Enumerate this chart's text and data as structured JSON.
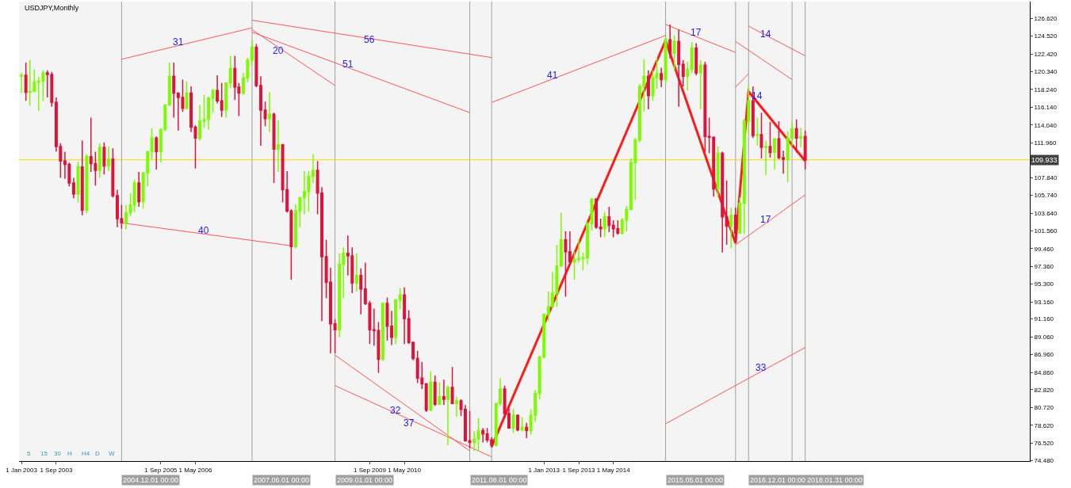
{
  "chart_data": {
    "type": "candlestick",
    "title": "USDJPY,Monthly",
    "x": [
      "2003-01",
      "2003-02",
      "2003-03",
      "2003-04",
      "2003-05",
      "2003-06",
      "2003-07",
      "2003-08",
      "2003-09",
      "2003-10",
      "2003-11",
      "2003-12",
      "2004-01",
      "2004-02",
      "2004-03",
      "2004-04",
      "2004-05",
      "2004-06",
      "2004-07",
      "2004-08",
      "2004-09",
      "2004-10",
      "2004-11",
      "2004-12",
      "2005-01",
      "2005-02",
      "2005-03",
      "2005-04",
      "2005-05",
      "2005-06",
      "2005-07",
      "2005-08",
      "2005-09",
      "2005-10",
      "2005-11",
      "2005-12",
      "2006-01",
      "2006-02",
      "2006-03",
      "2006-04",
      "2006-05",
      "2006-06",
      "2006-07",
      "2006-08",
      "2006-09",
      "2006-10",
      "2006-11",
      "2006-12",
      "2007-01",
      "2007-02",
      "2007-03",
      "2007-04",
      "2007-05",
      "2007-06",
      "2007-07",
      "2007-08",
      "2007-09",
      "2007-10",
      "2007-11",
      "2007-12",
      "2008-01",
      "2008-02",
      "2008-03",
      "2008-04",
      "2008-05",
      "2008-06",
      "2008-07",
      "2008-08",
      "2008-09",
      "2008-10",
      "2008-11",
      "2008-12",
      "2009-01",
      "2009-02",
      "2009-03",
      "2009-04",
      "2009-05",
      "2009-06",
      "2009-07",
      "2009-08",
      "2009-09",
      "2009-10",
      "2009-11",
      "2009-12",
      "2010-01",
      "2010-02",
      "2010-03",
      "2010-04",
      "2010-05",
      "2010-06",
      "2010-07",
      "2010-08",
      "2010-09",
      "2010-10",
      "2010-11",
      "2010-12",
      "2011-01",
      "2011-02",
      "2011-03",
      "2011-04",
      "2011-05",
      "2011-06",
      "2011-07",
      "2011-08",
      "2011-09",
      "2011-10",
      "2011-11",
      "2011-12",
      "2012-01",
      "2012-02",
      "2012-03",
      "2012-04",
      "2012-05",
      "2012-06",
      "2012-07",
      "2012-08",
      "2012-09",
      "2012-10",
      "2012-11",
      "2012-12",
      "2013-01",
      "2013-02",
      "2013-03",
      "2013-04",
      "2013-05",
      "2013-06",
      "2013-07",
      "2013-08",
      "2013-09",
      "2013-10",
      "2013-11",
      "2013-12",
      "2014-01",
      "2014-02",
      "2014-03",
      "2014-04",
      "2014-05",
      "2014-06",
      "2014-07",
      "2014-08",
      "2014-09",
      "2014-10",
      "2014-11",
      "2014-12",
      "2015-01",
      "2015-02",
      "2015-03",
      "2015-04",
      "2015-05",
      "2015-06",
      "2015-07",
      "2015-08",
      "2015-09",
      "2015-10",
      "2015-11",
      "2015-12",
      "2016-01",
      "2016-02",
      "2016-03",
      "2016-04",
      "2016-05",
      "2016-06",
      "2016-07",
      "2016-08",
      "2016-09",
      "2016-10",
      "2016-11",
      "2016-12",
      "2017-01",
      "2017-02",
      "2017-03",
      "2017-04",
      "2017-05",
      "2017-06",
      "2017-07",
      "2017-08",
      "2017-09",
      "2017-10",
      "2017-11",
      "2017-12",
      "2018-01"
    ],
    "ohlc": [
      [
        119.8,
        120.2,
        117.8,
        119.9
      ],
      [
        119.9,
        121.4,
        116.9,
        117.9
      ],
      [
        117.9,
        121.7,
        116.3,
        118.0
      ],
      [
        118.0,
        120.6,
        118.0,
        119.1
      ],
      [
        119.1,
        119.7,
        115.7,
        119.2
      ],
      [
        119.2,
        120.5,
        116.9,
        120.2
      ],
      [
        120.2,
        120.5,
        117.3,
        120.0
      ],
      [
        120.0,
        120.3,
        116.2,
        116.7
      ],
      [
        116.7,
        117.3,
        110.9,
        111.5
      ],
      [
        111.5,
        111.9,
        107.8,
        109.8
      ],
      [
        109.8,
        110.9,
        107.7,
        109.4
      ],
      [
        109.4,
        109.6,
        106.8,
        107.2
      ],
      [
        107.2,
        107.8,
        105.4,
        105.9
      ],
      [
        105.9,
        109.7,
        104.9,
        109.1
      ],
      [
        109.1,
        112.2,
        103.4,
        104.0
      ],
      [
        104.0,
        110.6,
        103.6,
        110.3
      ],
      [
        110.3,
        114.9,
        108.5,
        109.5
      ],
      [
        109.5,
        110.9,
        106.9,
        108.7
      ],
      [
        108.7,
        111.9,
        107.8,
        111.4
      ],
      [
        111.4,
        112.0,
        108.2,
        109.2
      ],
      [
        109.2,
        111.5,
        108.6,
        110.0
      ],
      [
        110.0,
        111.3,
        105.5,
        105.7
      ],
      [
        105.7,
        106.4,
        102.0,
        103.0
      ],
      [
        103.0,
        104.6,
        101.8,
        102.5
      ],
      [
        102.5,
        104.6,
        101.7,
        103.7
      ],
      [
        103.7,
        106.0,
        103.3,
        104.6
      ],
      [
        104.6,
        107.6,
        103.8,
        107.2
      ],
      [
        107.2,
        108.5,
        104.4,
        105.0
      ],
      [
        105.0,
        108.5,
        104.2,
        108.4
      ],
      [
        108.4,
        111.0,
        106.8,
        110.9
      ],
      [
        110.9,
        113.7,
        110.0,
        112.5
      ],
      [
        112.5,
        112.7,
        108.8,
        110.9
      ],
      [
        110.9,
        113.7,
        109.6,
        113.5
      ],
      [
        113.5,
        116.4,
        113.3,
        116.4
      ],
      [
        116.4,
        121.4,
        116.3,
        119.8
      ],
      [
        119.8,
        121.4,
        114.9,
        117.8
      ],
      [
        117.8,
        117.9,
        113.4,
        117.3
      ],
      [
        117.3,
        119.4,
        115.6,
        116.0
      ],
      [
        116.0,
        119.2,
        115.9,
        117.8
      ],
      [
        117.8,
        118.6,
        113.2,
        113.8
      ],
      [
        113.8,
        114.0,
        108.9,
        112.5
      ],
      [
        112.5,
        116.4,
        112.2,
        114.5
      ],
      [
        114.5,
        117.6,
        113.7,
        114.7
      ],
      [
        114.7,
        117.4,
        113.5,
        117.2
      ],
      [
        117.2,
        118.3,
        115.5,
        118.1
      ],
      [
        118.1,
        119.9,
        116.6,
        116.9
      ],
      [
        116.9,
        119.0,
        115.0,
        115.8
      ],
      [
        115.8,
        119.1,
        114.9,
        119.0
      ],
      [
        119.0,
        122.2,
        118.4,
        120.7
      ],
      [
        120.7,
        122.2,
        117.0,
        118.5
      ],
      [
        118.5,
        119.0,
        115.1,
        117.8
      ],
      [
        117.8,
        120.2,
        117.6,
        119.6
      ],
      [
        119.6,
        122.0,
        119.1,
        121.7
      ],
      [
        121.7,
        124.1,
        121.1,
        123.2
      ],
      [
        123.2,
        123.6,
        118.5,
        118.7
      ],
      [
        118.7,
        119.8,
        111.6,
        115.8
      ],
      [
        115.8,
        116.8,
        113.9,
        114.8
      ],
      [
        114.8,
        117.9,
        113.2,
        115.3
      ],
      [
        115.3,
        115.5,
        107.2,
        111.2
      ],
      [
        111.2,
        114.6,
        108.5,
        111.7
      ],
      [
        111.7,
        111.8,
        104.9,
        106.4
      ],
      [
        106.4,
        108.6,
        103.7,
        103.9
      ],
      [
        103.9,
        104.1,
        95.8,
        99.7
      ],
      [
        99.7,
        104.7,
        99.5,
        103.9
      ],
      [
        103.9,
        105.5,
        102.0,
        105.5
      ],
      [
        105.5,
        108.6,
        103.5,
        106.2
      ],
      [
        106.2,
        108.6,
        103.8,
        108.0
      ],
      [
        108.0,
        110.6,
        107.2,
        108.7
      ],
      [
        108.7,
        109.8,
        103.5,
        106.0
      ],
      [
        106.0,
        106.7,
        90.9,
        98.5
      ],
      [
        98.5,
        100.5,
        93.6,
        95.5
      ],
      [
        95.5,
        97.2,
        87.1,
        90.6
      ],
      [
        90.6,
        91.1,
        87.1,
        89.9
      ],
      [
        89.9,
        98.9,
        89.0,
        97.6
      ],
      [
        97.6,
        99.6,
        93.6,
        98.9
      ],
      [
        98.9,
        101.0,
        96.3,
        98.6
      ],
      [
        98.6,
        99.6,
        94.2,
        95.4
      ],
      [
        95.4,
        98.9,
        94.4,
        96.3
      ],
      [
        96.3,
        97.1,
        91.7,
        94.7
      ],
      [
        94.7,
        97.8,
        92.8,
        93.0
      ],
      [
        93.0,
        93.3,
        88.2,
        89.9
      ],
      [
        89.9,
        92.4,
        88.0,
        89.8
      ],
      [
        89.8,
        90.8,
        84.8,
        86.4
      ],
      [
        86.4,
        93.1,
        86.2,
        93.0
      ],
      [
        93.0,
        93.7,
        88.6,
        90.3
      ],
      [
        90.3,
        92.1,
        88.1,
        89.0
      ],
      [
        89.0,
        93.5,
        88.2,
        93.4
      ],
      [
        93.4,
        94.8,
        92.3,
        94.0
      ],
      [
        94.0,
        94.9,
        88.2,
        91.2
      ],
      [
        91.2,
        92.2,
        88.2,
        88.4
      ],
      [
        88.4,
        88.5,
        86.3,
        86.5
      ],
      [
        86.5,
        87.4,
        83.6,
        84.2
      ],
      [
        84.2,
        86.1,
        82.9,
        83.5
      ],
      [
        83.5,
        83.6,
        80.2,
        80.4
      ],
      [
        80.4,
        85.0,
        80.3,
        83.7
      ],
      [
        83.7,
        84.5,
        80.9,
        81.1
      ],
      [
        81.1,
        83.7,
        81.0,
        82.0
      ],
      [
        82.0,
        84.0,
        81.0,
        81.7
      ],
      [
        81.7,
        83.3,
        76.3,
        83.1
      ],
      [
        83.1,
        85.5,
        81.1,
        81.2
      ],
      [
        81.2,
        82.0,
        79.6,
        81.5
      ],
      [
        81.5,
        81.7,
        79.7,
        80.5
      ],
      [
        80.5,
        81.0,
        76.7,
        76.8
      ],
      [
        76.8,
        80.3,
        75.9,
        76.6
      ],
      [
        76.6,
        77.9,
        75.6,
        77.0
      ],
      [
        77.0,
        79.5,
        75.6,
        78.0
      ],
      [
        78.0,
        78.3,
        76.6,
        77.6
      ],
      [
        77.6,
        78.3,
        76.6,
        76.9
      ],
      [
        76.9,
        77.2,
        76.0,
        76.3
      ],
      [
        76.3,
        81.2,
        76.1,
        81.2
      ],
      [
        81.2,
        84.2,
        80.9,
        82.9
      ],
      [
        82.9,
        83.3,
        79.5,
        80.0
      ],
      [
        80.0,
        80.7,
        78.2,
        78.3
      ],
      [
        78.3,
        80.6,
        77.7,
        79.8
      ],
      [
        79.8,
        79.9,
        77.9,
        78.1
      ],
      [
        78.1,
        79.6,
        77.9,
        78.4
      ],
      [
        78.4,
        78.9,
        77.1,
        78.0
      ],
      [
        78.0,
        80.5,
        77.5,
        79.8
      ],
      [
        79.8,
        82.8,
        79.0,
        82.4
      ],
      [
        82.4,
        86.8,
        81.7,
        86.7
      ],
      [
        86.7,
        91.8,
        86.5,
        91.7
      ],
      [
        91.7,
        94.4,
        90.9,
        92.6
      ],
      [
        92.6,
        96.7,
        92.5,
        94.2
      ],
      [
        94.2,
        99.9,
        92.6,
        97.4
      ],
      [
        97.4,
        103.7,
        97.3,
        100.5
      ],
      [
        100.5,
        101.5,
        93.8,
        99.1
      ],
      [
        99.1,
        101.5,
        97.6,
        97.9
      ],
      [
        97.9,
        99.1,
        95.8,
        98.2
      ],
      [
        98.2,
        100.6,
        97.8,
        98.3
      ],
      [
        98.3,
        99.0,
        96.9,
        98.4
      ],
      [
        98.4,
        102.6,
        97.6,
        102.4
      ],
      [
        102.4,
        105.4,
        101.6,
        105.3
      ],
      [
        105.3,
        105.4,
        101.8,
        102.0
      ],
      [
        102.0,
        103.0,
        100.8,
        101.8
      ],
      [
        101.8,
        103.8,
        100.8,
        103.2
      ],
      [
        103.2,
        104.4,
        101.4,
        102.2
      ],
      [
        102.2,
        102.8,
        100.8,
        101.8
      ],
      [
        101.8,
        102.8,
        101.1,
        101.3
      ],
      [
        101.3,
        103.1,
        101.1,
        102.8
      ],
      [
        102.8,
        104.5,
        101.5,
        104.1
      ],
      [
        104.1,
        110.1,
        104.0,
        109.6
      ],
      [
        109.6,
        112.5,
        105.2,
        112.3
      ],
      [
        112.3,
        118.9,
        112.0,
        118.6
      ],
      [
        118.6,
        121.8,
        115.6,
        119.8
      ],
      [
        119.8,
        120.5,
        115.9,
        117.5
      ],
      [
        117.5,
        120.5,
        116.9,
        119.6
      ],
      [
        119.6,
        122.0,
        118.3,
        120.1
      ],
      [
        120.1,
        120.8,
        118.5,
        119.4
      ],
      [
        119.4,
        124.5,
        118.9,
        124.1
      ],
      [
        124.1,
        125.9,
        121.9,
        122.5
      ],
      [
        122.5,
        124.6,
        120.4,
        123.9
      ],
      [
        123.9,
        125.3,
        116.2,
        121.2
      ],
      [
        121.2,
        121.7,
        118.6,
        119.8
      ],
      [
        119.8,
        121.5,
        118.1,
        120.6
      ],
      [
        120.6,
        123.8,
        120.2,
        123.1
      ],
      [
        123.1,
        123.7,
        119.9,
        120.2
      ],
      [
        120.2,
        121.7,
        115.9,
        121.1
      ],
      [
        121.1,
        121.5,
        110.9,
        112.7
      ],
      [
        112.7,
        114.9,
        110.7,
        112.6
      ],
      [
        112.6,
        112.7,
        105.6,
        106.5
      ],
      [
        106.5,
        111.5,
        105.5,
        110.7
      ],
      [
        110.7,
        110.9,
        99.0,
        103.2
      ],
      [
        103.2,
        107.5,
        99.9,
        102.1
      ],
      [
        102.1,
        104.3,
        99.5,
        103.4
      ],
      [
        103.4,
        104.3,
        100.1,
        101.3
      ],
      [
        101.3,
        105.5,
        101.2,
        104.8
      ],
      [
        104.8,
        114.8,
        101.2,
        114.5
      ],
      [
        114.5,
        118.7,
        113.1,
        116.9
      ],
      [
        116.9,
        118.6,
        112.5,
        112.8
      ],
      [
        112.8,
        114.9,
        111.6,
        112.9
      ],
      [
        112.9,
        115.5,
        110.1,
        111.4
      ],
      [
        111.4,
        112.2,
        108.1,
        111.5
      ],
      [
        111.5,
        114.4,
        110.2,
        110.8
      ],
      [
        110.8,
        112.5,
        108.8,
        112.4
      ],
      [
        112.4,
        114.5,
        110.0,
        110.2
      ],
      [
        110.2,
        111.0,
        108.3,
        110.0
      ],
      [
        110.0,
        113.3,
        107.3,
        112.5
      ],
      [
        112.5,
        114.4,
        111.6,
        113.6
      ],
      [
        113.6,
        114.7,
        110.8,
        112.5
      ],
      [
        112.5,
        113.7,
        111.4,
        112.7
      ],
      [
        112.7,
        113.4,
        108.8,
        109.9
      ]
    ],
    "colors": [
      "#7cfc00",
      "#dc143c",
      "#7cfc00",
      "#7cfc00",
      "#7cfc00",
      "#7cfc00",
      "#dc143c",
      "#dc143c",
      "#dc143c",
      "#dc143c",
      "#dc143c",
      "#dc143c",
      "#dc143c",
      "#7cfc00",
      "#dc143c",
      "#7cfc00",
      "#dc143c",
      "#dc143c",
      "#7cfc00",
      "#dc143c",
      "#7cfc00",
      "#dc143c",
      "#dc143c",
      "#dc143c",
      "#7cfc00",
      "#7cfc00",
      "#7cfc00",
      "#dc143c",
      "#7cfc00",
      "#7cfc00",
      "#7cfc00",
      "#dc143c",
      "#7cfc00",
      "#7cfc00",
      "#7cfc00",
      "#dc143c",
      "#dc143c",
      "#dc143c",
      "#7cfc00",
      "#dc143c",
      "#dc143c",
      "#7cfc00",
      "#7cfc00",
      "#7cfc00",
      "#7cfc00",
      "#dc143c",
      "#dc143c",
      "#7cfc00",
      "#7cfc00",
      "#dc143c",
      "#dc143c",
      "#7cfc00",
      "#7cfc00",
      "#7cfc00",
      "#dc143c",
      "#dc143c",
      "#dc143c",
      "#7cfc00",
      "#dc143c",
      "#7cfc00",
      "#dc143c",
      "#dc143c",
      "#dc143c",
      "#7cfc00",
      "#7cfc00",
      "#7cfc00",
      "#7cfc00",
      "#7cfc00",
      "#dc143c",
      "#dc143c",
      "#dc143c",
      "#dc143c",
      "#dc143c",
      "#7cfc00",
      "#7cfc00",
      "#dc143c",
      "#dc143c",
      "#7cfc00",
      "#dc143c",
      "#dc143c",
      "#dc143c",
      "#dc143c",
      "#dc143c",
      "#7cfc00",
      "#dc143c",
      "#dc143c",
      "#7cfc00",
      "#7cfc00",
      "#dc143c",
      "#dc143c",
      "#dc143c",
      "#dc143c",
      "#dc143c",
      "#dc143c",
      "#7cfc00",
      "#dc143c",
      "#7cfc00",
      "#dc143c",
      "#7cfc00",
      "#dc143c",
      "#7cfc00",
      "#dc143c",
      "#dc143c",
      "#dc143c",
      "#7cfc00",
      "#7cfc00",
      "#dc143c",
      "#dc143c",
      "#dc143c",
      "#7cfc00",
      "#7cfc00",
      "#dc143c",
      "#dc143c",
      "#7cfc00",
      "#dc143c",
      "#7cfc00",
      "#dc143c",
      "#7cfc00",
      "#7cfc00",
      "#7cfc00",
      "#7cfc00",
      "#7cfc00",
      "#7cfc00",
      "#7cfc00",
      "#7cfc00",
      "#dc143c",
      "#dc143c",
      "#7cfc00",
      "#7cfc00",
      "#7cfc00",
      "#7cfc00",
      "#7cfc00",
      "#dc143c",
      "#dc143c",
      "#7cfc00",
      "#dc143c",
      "#dc143c",
      "#dc143c",
      "#7cfc00",
      "#7cfc00",
      "#7cfc00",
      "#7cfc00",
      "#7cfc00",
      "#7cfc00",
      "#dc143c",
      "#7cfc00",
      "#7cfc00",
      "#dc143c",
      "#7cfc00",
      "#dc143c",
      "#7cfc00",
      "#dc143c",
      "#dc143c",
      "#7cfc00",
      "#7cfc00",
      "#dc143c",
      "#7cfc00",
      "#dc143c",
      "#dc143c",
      "#dc143c",
      "#7cfc00",
      "#dc143c",
      "#dc143c",
      "#7cfc00",
      "#dc143c",
      "#7cfc00",
      "#7cfc00",
      "#7cfc00",
      "#dc143c",
      "#7cfc00",
      "#dc143c",
      "#7cfc00",
      "#dc143c",
      "#7cfc00",
      "#dc143c",
      "#dc143c",
      "#7cfc00",
      "#7cfc00",
      "#dc143c",
      "#7cfc00",
      "#dc143c"
    ],
    "series": [
      {
        "type": "line",
        "color": "#ff1a1a",
        "x": [
          "2012-01",
          "2015-05",
          "2016-09",
          "2016-12",
          "2018-01"
        ],
        "values": [
          76.1,
          124.0,
          100.1,
          118.0,
          109.8
        ]
      },
      {
        "type": "line",
        "color": "#ff5555",
        "x": [
          "2004-12",
          "2007-06"
        ],
        "values": [
          121.8,
          125.5
        ]
      },
      {
        "type": "line",
        "color": "#ff5555",
        "x": [
          "2007-06",
          "2012-01"
        ],
        "values": [
          126.4,
          122.0
        ]
      },
      {
        "type": "line",
        "color": "#ff5555",
        "x": [
          "2007-06",
          "2009-01"
        ],
        "values": [
          125.3,
          118.7
        ]
      },
      {
        "type": "line",
        "color": "#ff5555",
        "x": [
          "2007-06",
          "2011-08"
        ],
        "values": [
          125.0,
          115.5
        ]
      },
      {
        "type": "line",
        "color": "#ff5555",
        "x": [
          "2012-01",
          "2015-05"
        ],
        "values": [
          116.7,
          124.6
        ]
      },
      {
        "type": "line",
        "color": "#ff5555",
        "x": [
          "2015-05",
          "2016-09"
        ],
        "values": [
          125.9,
          122.6
        ]
      },
      {
        "type": "line",
        "color": "#ff5555",
        "x": [
          "2016-09",
          "2017-10"
        ],
        "values": [
          123.9,
          119.4
        ]
      },
      {
        "type": "line",
        "color": "#ff5555",
        "x": [
          "2016-12",
          "2018-01"
        ],
        "values": [
          125.7,
          122.2
        ]
      },
      {
        "type": "line",
        "color": "#ff5555",
        "x": [
          "2016-09",
          "2016-12"
        ],
        "values": [
          118.5,
          120.1
        ]
      },
      {
        "type": "line",
        "color": "#ff5555",
        "x": [
          "2016-09",
          "2018-01"
        ],
        "values": [
          99.9,
          105.8
        ]
      },
      {
        "type": "line",
        "color": "#ff5555",
        "x": [
          "2015-05",
          "2018-01"
        ],
        "values": [
          78.8,
          87.8
        ]
      },
      {
        "type": "line",
        "color": "#ff5555",
        "x": [
          "2004-12",
          "2008-03"
        ],
        "values": [
          102.5,
          99.8
        ]
      },
      {
        "type": "line",
        "color": "#ff5555",
        "x": [
          "2009-01",
          "2011-08"
        ],
        "values": [
          86.9,
          75.6
        ]
      },
      {
        "type": "line",
        "color": "#ff5555",
        "x": [
          "2009-01",
          "2012-01"
        ],
        "values": [
          83.3,
          74.9
        ]
      }
    ],
    "annotations": [
      "5",
      "15",
      "30",
      "H",
      "H4",
      "D",
      "W",
      {
        "text": "31",
        "x": "2006-01",
        "y": 123.8
      },
      {
        "text": "20",
        "x": "2007-12",
        "y": 122.8
      },
      {
        "text": "56",
        "x": "2009-09",
        "y": 124.1
      },
      {
        "text": "51",
        "x": "2009-04",
        "y": 121.2
      },
      {
        "text": "41",
        "x": "2013-03",
        "y": 119.9
      },
      {
        "text": "17",
        "x": "2015-12",
        "y": 125.0
      },
      {
        "text": "14",
        "x": "2017-04",
        "y": 124.8
      },
      {
        "text": "14",
        "x": "2017-02",
        "y": 117.5
      },
      {
        "text": "40",
        "x": "2006-07",
        "y": 101.6
      },
      {
        "text": "32",
        "x": "2010-03",
        "y": 80.4
      },
      {
        "text": "37",
        "x": "2010-06",
        "y": 78.9
      },
      {
        "text": "17",
        "x": "2017-04",
        "y": 102.9
      },
      {
        "text": "33",
        "x": "2017-03",
        "y": 85.4
      }
    ],
    "ref_lines": [
      {
        "axis": "x",
        "value": "2004-12",
        "label": "2004.12.01 00:00",
        "color": "#a0a0a0"
      },
      {
        "axis": "x",
        "value": "2007-06",
        "label": "2007.06.01 00:00",
        "color": "#a0a0a0"
      },
      {
        "axis": "x",
        "value": "2009-01",
        "label": "2009.01.01 00:00",
        "color": "#a0a0a0"
      },
      {
        "axis": "x",
        "value": "2011-08",
        "label": "2011.08.01 00:00",
        "color": "#a0a0a0"
      },
      {
        "axis": "x",
        "value": "2012-01",
        "label": null,
        "color": "#a0a0a0"
      },
      {
        "axis": "x",
        "value": "2015-05",
        "label": "2015.05.01 00:00",
        "color": "#a0a0a0"
      },
      {
        "axis": "x",
        "value": "2016-09",
        "label": null,
        "color": "#a0a0a0"
      },
      {
        "axis": "x",
        "value": "2016-12",
        "label": "2016.12.01 00:00",
        "color": "#a0a0a0"
      },
      {
        "axis": "x",
        "value": "2017-10",
        "label": null,
        "color": "#a0a0a0"
      },
      {
        "axis": "x",
        "value": "2018-01",
        "label": "2018.01.31 00:00",
        "color": "#a0a0a0"
      },
      {
        "axis": "y",
        "value": 109.933,
        "label": "109.933",
        "color": "#ffd700"
      }
    ],
    "xlim": [
      "2002-12-15",
      "2022-04-20"
    ],
    "xticks": [
      {
        "value": "2003-01-01",
        "label": "1 Jan 2003"
      },
      {
        "value": "2003-09-01",
        "label": "1 Sep 2003"
      },
      {
        "value": "2005-09-01",
        "label": "1 Sep 2005"
      },
      {
        "value": "2006-05-01",
        "label": "1 May 2006"
      },
      {
        "value": "2009-09-01",
        "label": "1 Sep 2009"
      },
      {
        "value": "2010-05-01",
        "label": "1 May 2010"
      },
      {
        "value": "2013-01-01",
        "label": "1 Jan 2013"
      },
      {
        "value": "2013-09-01",
        "label": "1 Sep 2013"
      },
      {
        "value": "2014-05-01",
        "label": "1 May 2014"
      }
    ],
    "ylim": [
      74.4,
      128.6
    ],
    "yticks": [
      {
        "value": 126.62,
        "label": "126.620"
      },
      {
        "value": 124.52,
        "label": "124.520"
      },
      {
        "value": 122.42,
        "label": "122.420"
      },
      {
        "value": 120.34,
        "label": "120.340"
      },
      {
        "value": 118.24,
        "label": "118.240"
      },
      {
        "value": 116.14,
        "label": "116.140"
      },
      {
        "value": 114.04,
        "label": "114.040"
      },
      {
        "value": 111.96,
        "label": "111.960"
      },
      {
        "value": 107.84,
        "label": "107.840"
      },
      {
        "value": 105.74,
        "label": "105.740"
      },
      {
        "value": 103.64,
        "label": "103.640"
      },
      {
        "value": 101.56,
        "label": "101.560"
      },
      {
        "value": 99.46,
        "label": "99.460"
      },
      {
        "value": 97.36,
        "label": "97.360"
      },
      {
        "value": 95.3,
        "label": "95.300"
      },
      {
        "value": 93.16,
        "label": "93.160"
      },
      {
        "value": 91.16,
        "label": "91.160"
      },
      {
        "value": 89.06,
        "label": "89.060"
      },
      {
        "value": 86.96,
        "label": "86.960"
      },
      {
        "value": 84.86,
        "label": "84.860"
      },
      {
        "value": 82.82,
        "label": "82.820"
      },
      {
        "value": 80.72,
        "label": "80.720"
      },
      {
        "value": 78.62,
        "label": "78.620"
      },
      {
        "value": 76.52,
        "label": "76.520"
      },
      {
        "value": 74.48,
        "label": "74.480"
      }
    ]
  }
}
